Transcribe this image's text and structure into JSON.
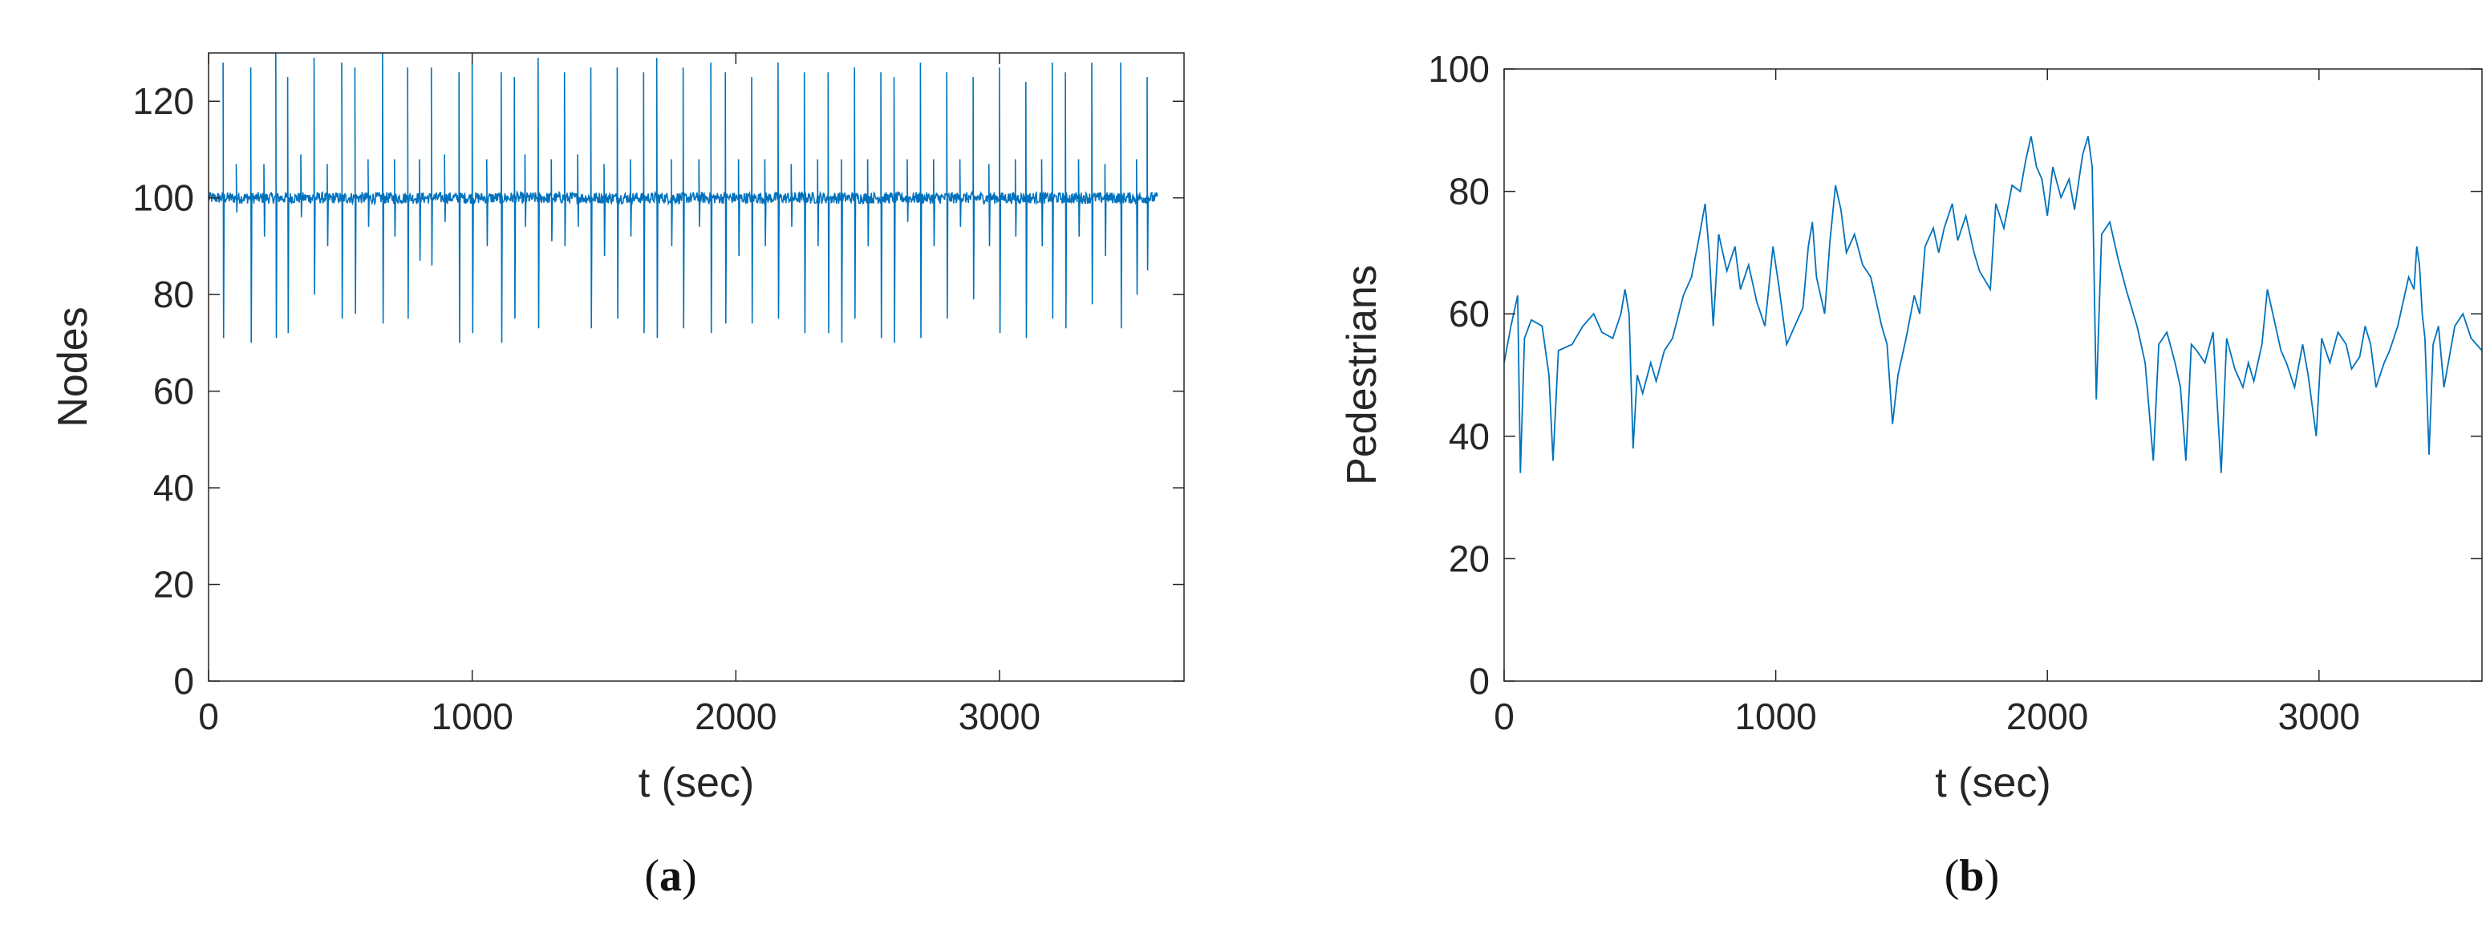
{
  "figure": {
    "caption_a": "a",
    "caption_b": "b"
  },
  "colors": {
    "line": "#0072BD",
    "axis": "#262626",
    "tick_label": "#262626"
  },
  "chart_data": [
    {
      "type": "line",
      "title": "",
      "xlabel": "t (sec)",
      "ylabel": "Nodes",
      "xlim": [
        0,
        3700
      ],
      "ylim": [
        0,
        130
      ],
      "xticks": [
        0,
        1000,
        2000,
        3000
      ],
      "yticks": [
        0,
        20,
        40,
        60,
        80,
        100,
        120
      ],
      "grid": false,
      "series": [
        {
          "baseline": 100,
          "noise": 1.2,
          "x_start": 0,
          "x_end": 3600,
          "spikes": [
            [
              55,
              128,
              71
            ],
            [
              105,
              107,
              97
            ],
            [
              160,
              127,
              70
            ],
            [
              210,
              107,
              92
            ],
            [
              255,
              130,
              71
            ],
            [
              300,
              125,
              72
            ],
            [
              350,
              109,
              96
            ],
            [
              400,
              129,
              80
            ],
            [
              450,
              107,
              90
            ],
            [
              505,
              128,
              75
            ],
            [
              555,
              127,
              76
            ],
            [
              605,
              108,
              94
            ],
            [
              660,
              130,
              74
            ],
            [
              705,
              108,
              92
            ],
            [
              755,
              127,
              75
            ],
            [
              800,
              108,
              87
            ],
            [
              845,
              127,
              86
            ],
            [
              895,
              109,
              95
            ],
            [
              950,
              126,
              70
            ],
            [
              1000,
              128,
              72
            ],
            [
              1055,
              108,
              90
            ],
            [
              1110,
              126,
              70
            ],
            [
              1160,
              125,
              75
            ],
            [
              1200,
              109,
              94
            ],
            [
              1250,
              129,
              73
            ],
            [
              1300,
              108,
              91
            ],
            [
              1350,
              126,
              90
            ],
            [
              1400,
              109,
              94
            ],
            [
              1450,
              127,
              73
            ],
            [
              1500,
              107,
              88
            ],
            [
              1550,
              127,
              75
            ],
            [
              1600,
              108,
              92
            ],
            [
              1650,
              126,
              72
            ],
            [
              1700,
              129,
              71
            ],
            [
              1755,
              108,
              90
            ],
            [
              1800,
              127,
              73
            ],
            [
              1860,
              108,
              94
            ],
            [
              1905,
              128,
              72
            ],
            [
              1960,
              126,
              74
            ],
            [
              2010,
              108,
              88
            ],
            [
              2060,
              125,
              74
            ],
            [
              2110,
              108,
              90
            ],
            [
              2160,
              128,
              75
            ],
            [
              2210,
              107,
              94
            ],
            [
              2260,
              126,
              72
            ],
            [
              2310,
              108,
              90
            ],
            [
              2350,
              126,
              72
            ],
            [
              2400,
              108,
              70
            ],
            [
              2450,
              127,
              75
            ],
            [
              2500,
              108,
              90
            ],
            [
              2550,
              126,
              71
            ],
            [
              2600,
              125,
              70
            ],
            [
              2650,
              108,
              95
            ],
            [
              2700,
              128,
              71
            ],
            [
              2750,
              108,
              90
            ],
            [
              2800,
              126,
              75
            ],
            [
              2850,
              108,
              94
            ],
            [
              2900,
              125,
              79
            ],
            [
              2960,
              107,
              90
            ],
            [
              3000,
              127,
              72
            ],
            [
              3060,
              108,
              92
            ],
            [
              3100,
              124,
              71
            ],
            [
              3160,
              108,
              90
            ],
            [
              3200,
              128,
              75
            ],
            [
              3250,
              126,
              73
            ],
            [
              3300,
              108,
              92
            ],
            [
              3350,
              128,
              78
            ],
            [
              3400,
              107,
              88
            ],
            [
              3460,
              128,
              73
            ],
            [
              3520,
              108,
              80
            ],
            [
              3560,
              125,
              85
            ]
          ]
        }
      ]
    },
    {
      "type": "line",
      "title": "",
      "xlabel": "t (sec)",
      "ylabel": "Pedestrians",
      "xlim": [
        0,
        3600
      ],
      "ylim": [
        0,
        100
      ],
      "xticks": [
        0,
        1000,
        2000,
        3000
      ],
      "yticks": [
        0,
        20,
        40,
        60,
        80,
        100
      ],
      "grid": false,
      "series": [
        {
          "points": [
            [
              0,
              52
            ],
            [
              25,
              58
            ],
            [
              50,
              63
            ],
            [
              60,
              34
            ],
            [
              75,
              56
            ],
            [
              100,
              59
            ],
            [
              140,
              58
            ],
            [
              165,
              50
            ],
            [
              180,
              36
            ],
            [
              200,
              54
            ],
            [
              250,
              55
            ],
            [
              290,
              58
            ],
            [
              330,
              60
            ],
            [
              360,
              57
            ],
            [
              400,
              56
            ],
            [
              430,
              60
            ],
            [
              445,
              64
            ],
            [
              460,
              60
            ],
            [
              475,
              38
            ],
            [
              490,
              50
            ],
            [
              510,
              47
            ],
            [
              540,
              52
            ],
            [
              560,
              49
            ],
            [
              590,
              54
            ],
            [
              620,
              56
            ],
            [
              660,
              63
            ],
            [
              690,
              66
            ],
            [
              720,
              73
            ],
            [
              740,
              78
            ],
            [
              755,
              70
            ],
            [
              770,
              58
            ],
            [
              790,
              73
            ],
            [
              820,
              67
            ],
            [
              850,
              71
            ],
            [
              870,
              64
            ],
            [
              900,
              68
            ],
            [
              930,
              62
            ],
            [
              960,
              58
            ],
            [
              990,
              71
            ],
            [
              1010,
              65
            ],
            [
              1040,
              55
            ],
            [
              1070,
              58
            ],
            [
              1100,
              61
            ],
            [
              1120,
              71
            ],
            [
              1135,
              75
            ],
            [
              1150,
              66
            ],
            [
              1180,
              60
            ],
            [
              1200,
              72
            ],
            [
              1220,
              81
            ],
            [
              1240,
              77
            ],
            [
              1260,
              70
            ],
            [
              1290,
              73
            ],
            [
              1320,
              68
            ],
            [
              1350,
              66
            ],
            [
              1390,
              58
            ],
            [
              1410,
              55
            ],
            [
              1430,
              42
            ],
            [
              1450,
              50
            ],
            [
              1480,
              56
            ],
            [
              1510,
              63
            ],
            [
              1530,
              60
            ],
            [
              1550,
              71
            ],
            [
              1580,
              74
            ],
            [
              1600,
              70
            ],
            [
              1620,
              74
            ],
            [
              1650,
              78
            ],
            [
              1670,
              72
            ],
            [
              1700,
              76
            ],
            [
              1730,
              70
            ],
            [
              1750,
              67
            ],
            [
              1790,
              64
            ],
            [
              1810,
              78
            ],
            [
              1840,
              74
            ],
            [
              1870,
              81
            ],
            [
              1900,
              80
            ],
            [
              1920,
              85
            ],
            [
              1940,
              89
            ],
            [
              1960,
              84
            ],
            [
              1980,
              82
            ],
            [
              2000,
              76
            ],
            [
              2020,
              84
            ],
            [
              2050,
              79
            ],
            [
              2080,
              82
            ],
            [
              2100,
              77
            ],
            [
              2130,
              86
            ],
            [
              2150,
              89
            ],
            [
              2165,
              84
            ],
            [
              2180,
              46
            ],
            [
              2200,
              73
            ],
            [
              2230,
              75
            ],
            [
              2260,
              69
            ],
            [
              2290,
              64
            ],
            [
              2310,
              61
            ],
            [
              2330,
              58
            ],
            [
              2360,
              52
            ],
            [
              2390,
              36
            ],
            [
              2410,
              55
            ],
            [
              2440,
              57
            ],
            [
              2470,
              52
            ],
            [
              2490,
              48
            ],
            [
              2510,
              36
            ],
            [
              2530,
              55
            ],
            [
              2550,
              54
            ],
            [
              2580,
              52
            ],
            [
              2610,
              57
            ],
            [
              2640,
              34
            ],
            [
              2660,
              56
            ],
            [
              2690,
              51
            ],
            [
              2720,
              48
            ],
            [
              2740,
              52
            ],
            [
              2760,
              49
            ],
            [
              2790,
              55
            ],
            [
              2810,
              64
            ],
            [
              2830,
              60
            ],
            [
              2860,
              54
            ],
            [
              2880,
              52
            ],
            [
              2910,
              48
            ],
            [
              2940,
              55
            ],
            [
              2960,
              50
            ],
            [
              2990,
              40
            ],
            [
              3010,
              56
            ],
            [
              3040,
              52
            ],
            [
              3070,
              57
            ],
            [
              3100,
              55
            ],
            [
              3120,
              51
            ],
            [
              3150,
              53
            ],
            [
              3170,
              58
            ],
            [
              3190,
              55
            ],
            [
              3210,
              48
            ],
            [
              3240,
              52
            ],
            [
              3260,
              54
            ],
            [
              3290,
              58
            ],
            [
              3310,
              62
            ],
            [
              3330,
              66
            ],
            [
              3350,
              64
            ],
            [
              3360,
              71
            ],
            [
              3370,
              68
            ],
            [
              3380,
              60
            ],
            [
              3390,
              56
            ],
            [
              3405,
              37
            ],
            [
              3420,
              55
            ],
            [
              3440,
              58
            ],
            [
              3460,
              48
            ],
            [
              3480,
              53
            ],
            [
              3500,
              58
            ],
            [
              3530,
              60
            ],
            [
              3560,
              56
            ],
            [
              3600,
              54
            ]
          ]
        }
      ]
    }
  ]
}
